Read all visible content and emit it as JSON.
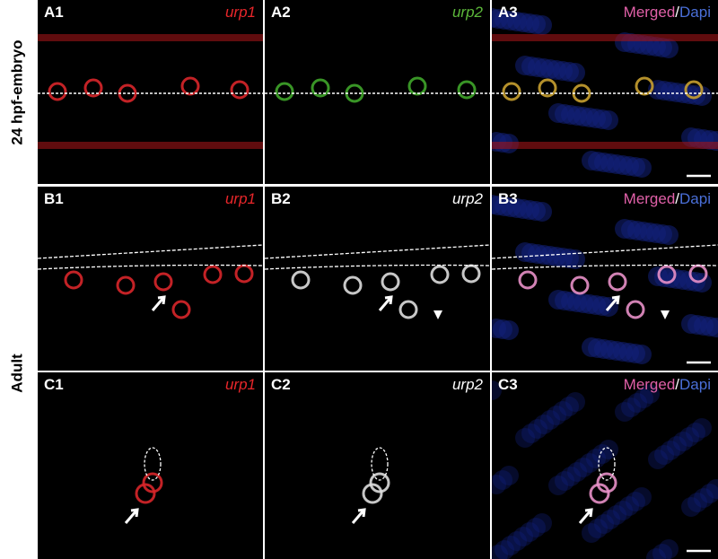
{
  "rows": [
    {
      "label": "24 hpf-embryo"
    },
    {
      "label": "Adult"
    }
  ],
  "panels": [
    [
      {
        "label": "A1",
        "stain": "urp1"
      },
      {
        "label": "A2",
        "stain": "urp2"
      },
      {
        "label": "A3",
        "stain": [
          "Merged",
          "/",
          "Dapi"
        ]
      }
    ],
    [
      {
        "label": "B1",
        "stain": "urp1"
      },
      {
        "label": "B2",
        "stain": "urp2"
      },
      {
        "label": "B3",
        "stain": [
          "Merged",
          "/",
          "Dapi"
        ]
      }
    ],
    [
      {
        "label": "C1",
        "stain": "urp1"
      },
      {
        "label": "C2",
        "stain": "urp2"
      },
      {
        "label": "C3",
        "stain": [
          "Merged",
          "/",
          "Dapi"
        ]
      }
    ]
  ]
}
